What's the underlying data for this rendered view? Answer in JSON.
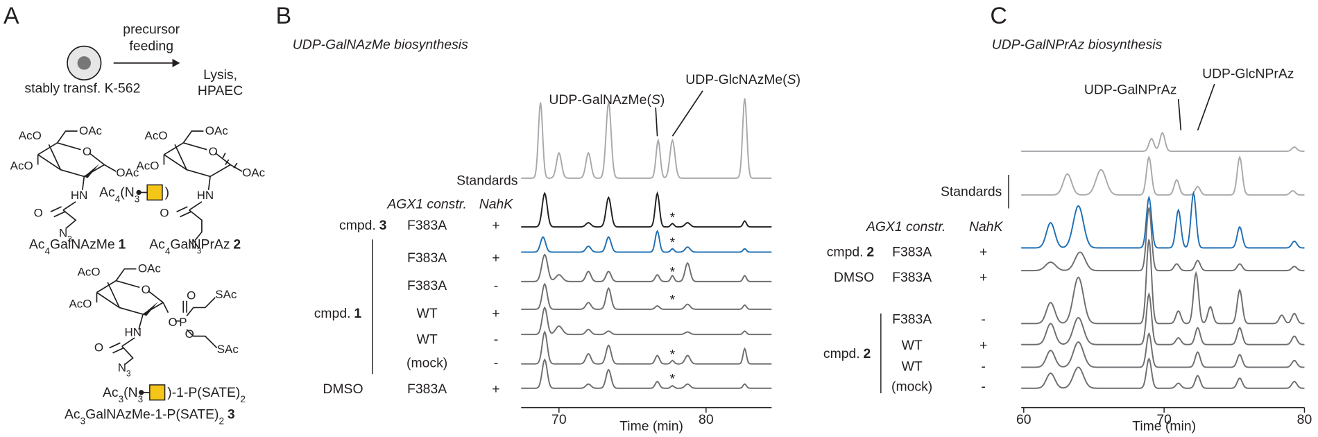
{
  "panel_a": {
    "label": "A",
    "feeding": [
      "precursor",
      "feeding"
    ],
    "lysis": [
      "Lysis,",
      "HPAEC"
    ],
    "cell": "stably transf. K-562",
    "compound_1": {
      "atoms": [
        [
          "AcO"
        ],
        [
          "OAc"
        ],
        [
          "AcO"
        ],
        [
          "O"
        ],
        [
          "OAc"
        ],
        [
          "HN"
        ],
        [
          "O"
        ],
        [
          "N",
          "3"
        ]
      ],
      "name": {
        "parts": [
          "Ac",
          "4",
          "GalNAzMe"
        ],
        "number": "1"
      }
    },
    "compound_2": {
      "atoms": [
        [
          "AcO"
        ],
        [
          "OAc"
        ],
        [
          "AcO"
        ],
        [
          "O"
        ],
        [
          "OAc"
        ],
        [
          "HN"
        ],
        [
          "O"
        ],
        [
          "N",
          "3"
        ]
      ],
      "name": {
        "parts": [
          "Ac",
          "4",
          "GalNPrAz"
        ],
        "number": "2"
      }
    },
    "protected_label": {
      "prefix": [
        "Ac",
        "4",
        "(N",
        "3"
      ],
      "suffix": [
        ")"
      ]
    },
    "compound_3": {
      "atoms": [
        [
          "AcO"
        ],
        [
          "OAc"
        ],
        [
          "AcO"
        ],
        [
          "O"
        ],
        [
          "HN"
        ],
        [
          "O"
        ],
        [
          "P"
        ],
        [
          "O"
        ],
        [
          "O"
        ],
        [
          "SAc"
        ],
        [
          "SAc"
        ],
        [
          "O"
        ],
        [
          "N",
          "3"
        ]
      ],
      "label": {
        "prefix": [
          "Ac",
          "3",
          "(N",
          "3"
        ],
        "suffix": [
          ")-1-P(SATE)",
          "2"
        ]
      },
      "name": {
        "parts": [
          "Ac",
          "3",
          "GalNAzMe-1-P(SATE)",
          "2"
        ],
        "number": "3"
      }
    }
  },
  "panel_b": {
    "label": "B",
    "title": "UDP-GalNAzMe biosynthesis",
    "peaks": [
      {
        "parts": [
          "UDP-GalNAzMe(",
          "S",
          ")"
        ]
      },
      {
        "parts": [
          "UDP-GlcNAzMe(",
          "S",
          ")"
        ]
      }
    ],
    "standards": "Standards",
    "header": {
      "construct": "AGX1 constr.",
      "nahk": "NahK"
    },
    "groups": [
      {
        "label": "cmpd.",
        "number": "3"
      },
      {
        "label": "cmpd.",
        "number": "1"
      },
      {
        "label": "DMSO"
      }
    ],
    "rows": [
      {
        "construct": "F383A",
        "nahk": "+"
      },
      {
        "construct": "F383A",
        "nahk": "+"
      },
      {
        "construct": "F383A",
        "nahk": "-"
      },
      {
        "construct": "WT",
        "nahk": "+"
      },
      {
        "construct": "WT",
        "nahk": "-"
      },
      {
        "construct": "(mock)",
        "nahk": "-"
      },
      {
        "construct": "F383A",
        "nahk": "+"
      }
    ],
    "asterisk": "*",
    "xticks": [
      70,
      80
    ],
    "xlabel": "Time (min)"
  },
  "panel_c": {
    "label": "C",
    "title": "UDP-GalNPrAz biosynthesis",
    "peaks": [
      "UDP-GalNPrAz",
      "UDP-GlcNPrAz"
    ],
    "standards": "Standards",
    "header": {
      "construct": "AGX1 constr.",
      "nahk": "NahK"
    },
    "groups": [
      {
        "label": "cmpd.",
        "number": "2"
      },
      {
        "label": "DMSO"
      },
      {
        "label": "cmpd.",
        "number": "2"
      }
    ],
    "rows": [
      {
        "construct": "F383A",
        "nahk": "+"
      },
      {
        "construct": "F383A",
        "nahk": "+"
      },
      {
        "construct": "F383A",
        "nahk": "-"
      },
      {
        "construct": "WT",
        "nahk": "+"
      },
      {
        "construct": "WT",
        "nahk": "-"
      },
      {
        "construct": "(mock)",
        "nahk": "-"
      }
    ],
    "xticks": [
      60,
      70,
      80
    ],
    "xlabel": "Time (min)"
  }
}
